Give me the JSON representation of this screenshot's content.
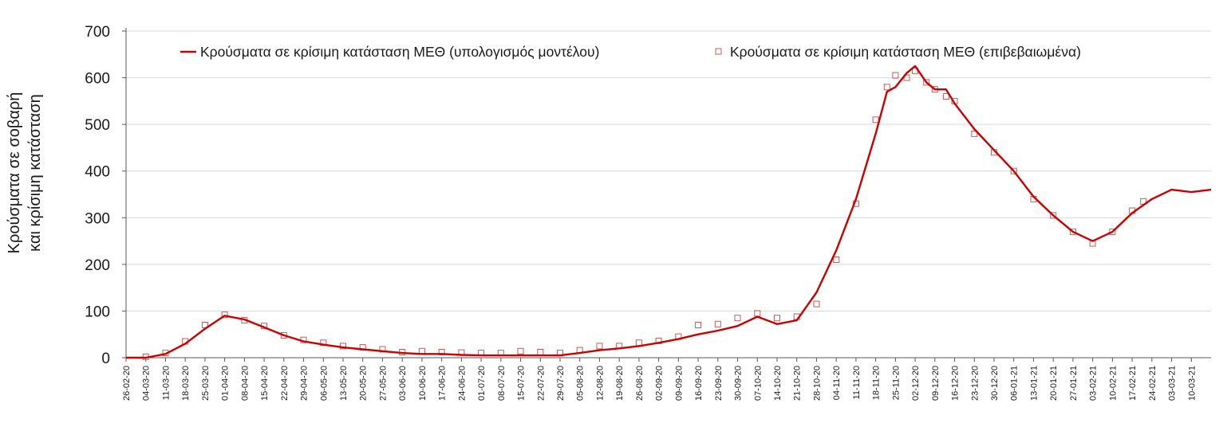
{
  "chart_data": {
    "type": "line",
    "ylabel_lines": [
      "Κρούσματα σε σοβαρή",
      "και κρίσιμη κατάσταση"
    ],
    "xlabel": "",
    "ylim": [
      0,
      700
    ],
    "yticks": [
      0,
      100,
      200,
      300,
      400,
      500,
      600,
      700
    ],
    "grid": true,
    "legend_position": "top",
    "x_start": "26-02-20",
    "x_end": "17-03-21",
    "xticks": [
      "26-02-20",
      "04-03-20",
      "11-03-20",
      "18-03-20",
      "25-03-20",
      "01-04-20",
      "08-04-20",
      "15-04-20",
      "22-04-20",
      "29-04-20",
      "06-05-20",
      "13-05-20",
      "20-05-20",
      "27-05-20",
      "03-06-20",
      "10-06-20",
      "17-06-20",
      "24-06-20",
      "01-07-20",
      "08-07-20",
      "15-07-20",
      "22-07-20",
      "29-07-20",
      "05-08-20",
      "12-08-20",
      "19-08-20",
      "26-08-20",
      "02-09-20",
      "09-09-20",
      "16-09-20",
      "23-09-20",
      "30-09-20",
      "07-10-20",
      "14-10-20",
      "21-10-20",
      "28-10-20",
      "04-11-20",
      "11-11-20",
      "18-11-20",
      "25-11-20",
      "02-12-20",
      "09-12-20",
      "16-12-20",
      "23-12-20",
      "30-12-20",
      "06-01-21",
      "13-01-21",
      "20-01-21",
      "27-01-21",
      "03-02-21",
      "10-02-21",
      "17-02-21",
      "24-02-21",
      "03-03-21",
      "10-03-21"
    ],
    "series": [
      {
        "name": "Κρούσματα σε κρίσιμη κατάσταση ΜΕΘ (υπολογισμός μοντέλου)",
        "style": "line",
        "color": "#cc0000",
        "x": [
          "26-02-20",
          "04-03-20",
          "11-03-20",
          "18-03-20",
          "25-03-20",
          "01-04-20",
          "08-04-20",
          "15-04-20",
          "22-04-20",
          "29-04-20",
          "06-05-20",
          "13-05-20",
          "20-05-20",
          "27-05-20",
          "03-06-20",
          "10-06-20",
          "17-06-20",
          "24-06-20",
          "01-07-20",
          "08-07-20",
          "15-07-20",
          "22-07-20",
          "29-07-20",
          "05-08-20",
          "12-08-20",
          "19-08-20",
          "26-08-20",
          "02-09-20",
          "09-09-20",
          "16-09-20",
          "23-09-20",
          "30-09-20",
          "07-10-20",
          "14-10-20",
          "21-10-20",
          "28-10-20",
          "04-11-20",
          "11-11-20",
          "18-11-20",
          "22-11-20",
          "25-11-20",
          "29-11-20",
          "02-12-20",
          "06-12-20",
          "09-12-20",
          "13-12-20",
          "16-12-20",
          "23-12-20",
          "30-12-20",
          "06-01-21",
          "13-01-21",
          "20-01-21",
          "27-01-21",
          "03-02-21",
          "10-02-21",
          "17-02-21",
          "24-02-21",
          "03-03-21",
          "10-03-21",
          "17-03-21"
        ],
        "y": [
          0,
          0,
          8,
          30,
          62,
          90,
          82,
          65,
          48,
          35,
          28,
          22,
          18,
          14,
          10,
          8,
          8,
          6,
          5,
          5,
          5,
          5,
          5,
          10,
          16,
          20,
          25,
          32,
          40,
          50,
          58,
          68,
          88,
          72,
          80,
          140,
          230,
          340,
          480,
          570,
          580,
          610,
          625,
          590,
          575,
          575,
          545,
          490,
          445,
          400,
          345,
          305,
          270,
          250,
          270,
          310,
          340,
          360,
          355,
          360
        ]
      },
      {
        "name": "Κρούσματα σε κρίσιμη κατάσταση ΜΕΘ (επιβεβαιωμένα)",
        "style": "markers",
        "color": "#c85a5a",
        "x": [
          "04-03-20",
          "11-03-20",
          "18-03-20",
          "25-03-20",
          "01-04-20",
          "08-04-20",
          "15-04-20",
          "22-04-20",
          "29-04-20",
          "06-05-20",
          "13-05-20",
          "20-05-20",
          "27-05-20",
          "03-06-20",
          "10-06-20",
          "17-06-20",
          "24-06-20",
          "01-07-20",
          "08-07-20",
          "15-07-20",
          "22-07-20",
          "29-07-20",
          "05-08-20",
          "12-08-20",
          "19-08-20",
          "26-08-20",
          "02-09-20",
          "09-09-20",
          "16-09-20",
          "23-09-20",
          "30-09-20",
          "07-10-20",
          "14-10-20",
          "21-10-20",
          "28-10-20",
          "04-11-20",
          "11-11-20",
          "18-11-20",
          "22-11-20",
          "25-11-20",
          "29-11-20",
          "02-12-20",
          "06-12-20",
          "09-12-20",
          "13-12-20",
          "16-12-20",
          "23-12-20",
          "30-12-20",
          "06-01-21",
          "13-01-21",
          "20-01-21",
          "27-01-21",
          "03-02-21",
          "10-02-21",
          "17-02-21",
          "21-02-21"
        ],
        "y": [
          2,
          10,
          35,
          70,
          92,
          80,
          68,
          48,
          38,
          32,
          25,
          22,
          18,
          12,
          14,
          12,
          11,
          10,
          10,
          14,
          12,
          10,
          16,
          25,
          25,
          32,
          36,
          45,
          70,
          72,
          85,
          95,
          85,
          88,
          115,
          210,
          330,
          510,
          580,
          605,
          600,
          615,
          590,
          575,
          560,
          550,
          480,
          440,
          400,
          340,
          305,
          270,
          245,
          270,
          315,
          335
        ]
      }
    ]
  }
}
